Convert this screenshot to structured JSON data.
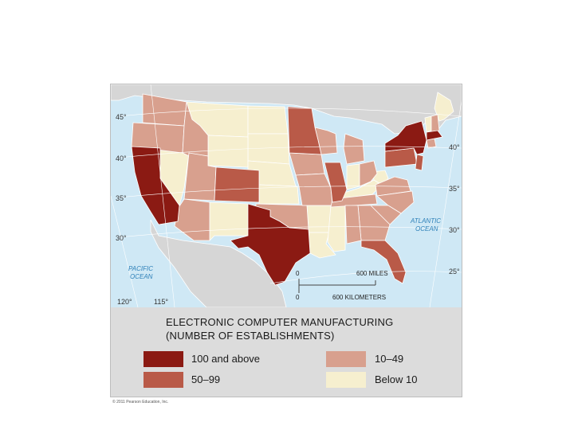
{
  "map": {
    "latitude_labels": [
      "45°",
      "40°",
      "35°",
      "30°",
      "40°",
      "35°",
      "30°",
      "25°"
    ],
    "longitude_labels": [
      "120°",
      "115°"
    ],
    "water_labels": {
      "atlantic": [
        "ATLANTIC",
        "OCEAN"
      ],
      "pacific": [
        "PACIFIC",
        "OCEAN"
      ]
    },
    "scale_bar": {
      "zero_top": "0",
      "miles": "600 MILES",
      "zero_bottom": "0",
      "kilometers": "600 KILOMETERS"
    },
    "colors": {
      "ocean": "#cfe8f5",
      "land_outside": "#d6d6d6",
      "class_100_plus": "#8b1a13",
      "class_50_99": "#b95a48",
      "class_10_49": "#d8a08e",
      "class_below_10": "#f6efcf"
    }
  },
  "legend": {
    "title_line1": "ELECTRONIC COMPUTER MANUFACTURING",
    "title_line2": "(NUMBER OF ESTABLISHMENTS)",
    "items": [
      {
        "label": "100 and above",
        "color": "#8b1a13"
      },
      {
        "label": "50–99",
        "color": "#b95a48"
      },
      {
        "label": "10–49",
        "color": "#d8a08e"
      },
      {
        "label": "Below 10",
        "color": "#f6efcf"
      }
    ]
  },
  "footer": {
    "copyright": "© 2011 Pearson Education, Inc."
  }
}
